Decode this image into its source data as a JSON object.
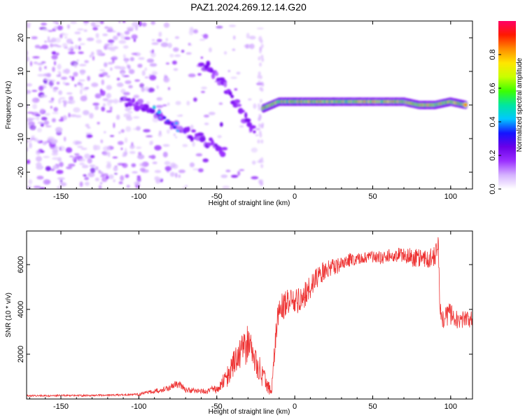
{
  "title": "PAZ1.2024.269.12.14.G20",
  "chart_data": [
    {
      "type": "heatmap",
      "xlabel": "Height of straight line (km)",
      "ylabel": "Frequency (Hz)",
      "xlim": [
        -172,
        114
      ],
      "ylim": [
        -25,
        25
      ],
      "xticks": [
        -150,
        -100,
        -50,
        0,
        50,
        100
      ],
      "yticks": [
        -20,
        -10,
        0,
        10,
        20
      ],
      "xtick_labels": [
        "-150",
        "-100",
        "-50",
        "0",
        "50",
        "100"
      ],
      "ytick_labels": [
        "-20",
        "-10",
        "0",
        "10",
        "20"
      ],
      "colorbar": {
        "label": "Normalized spectral amplitude",
        "range": [
          0,
          1
        ],
        "ticks": [
          0.0,
          0.2,
          0.4,
          0.6,
          0.8
        ],
        "tick_labels": [
          "0.0",
          "0.2",
          "0.4",
          "0.6",
          "0.8"
        ],
        "colormap": [
          "#ffffff",
          "#d6b3ff",
          "#9b30ff",
          "#6a00e8",
          "#1414ff",
          "#00c8ff",
          "#00e6a0",
          "#3cff00",
          "#c8ff00",
          "#ffe600",
          "#ff8c00",
          "#ff1a00",
          "#ff0066"
        ]
      },
      "ridges": [
        {
          "x": [
            -110,
            -100,
            -90,
            -80,
            -70,
            -60,
            -50,
            -45
          ],
          "y": [
            1,
            0,
            -2,
            -5,
            -8,
            -10,
            -12,
            -14
          ]
        },
        {
          "x": [
            -60,
            -50,
            -40,
            -30,
            -25
          ],
          "y": [
            13,
            9,
            2,
            -5,
            -10
          ]
        },
        {
          "x": [
            -20,
            -10,
            0,
            10,
            20,
            30,
            40,
            50,
            60,
            70,
            80,
            90,
            100,
            110
          ],
          "y": [
            -1,
            1,
            1,
            1,
            1,
            1,
            1,
            1,
            1,
            1,
            0,
            0,
            1,
            0
          ]
        }
      ]
    },
    {
      "type": "line",
      "xlabel": "Height of straight line (km)",
      "ylabel": "SNR (10 * v/v)",
      "xlim": [
        -172,
        114
      ],
      "ylim": [
        0,
        7500
      ],
      "xticks": [
        -150,
        -100,
        -50,
        0,
        50,
        100
      ],
      "yticks": [
        2000,
        4000,
        6000
      ],
      "xtick_labels": [
        "-150",
        "-100",
        "-50",
        "0",
        "50",
        "100"
      ],
      "ytick_labels": [
        "2000",
        "4000",
        "6000"
      ],
      "series": [
        {
          "color": "#ee3333",
          "x": [
            -172,
            -160,
            -150,
            -140,
            -130,
            -120,
            -110,
            -100,
            -90,
            -80,
            -75,
            -70,
            -60,
            -55,
            -50,
            -45,
            -40,
            -35,
            -30,
            -25,
            -20,
            -15,
            -12,
            -10,
            -5,
            0,
            5,
            10,
            15,
            20,
            25,
            30,
            35,
            40,
            45,
            50,
            55,
            60,
            65,
            70,
            75,
            80,
            85,
            90,
            92,
            93,
            95,
            100,
            105,
            110,
            114
          ],
          "y": [
            150,
            140,
            160,
            150,
            160,
            170,
            180,
            200,
            350,
            500,
            700,
            400,
            350,
            380,
            450,
            800,
            1400,
            2000,
            2500,
            1700,
            900,
            300,
            3000,
            4000,
            4300,
            4300,
            4500,
            5000,
            5500,
            5800,
            5900,
            6000,
            6200,
            6250,
            6300,
            6350,
            6300,
            6400,
            6400,
            6500,
            6300,
            6300,
            6200,
            6400,
            7000,
            4200,
            3600,
            3800,
            3500,
            3600,
            3500
          ],
          "amp": [
            40,
            40,
            40,
            40,
            40,
            40,
            40,
            60,
            100,
            150,
            200,
            120,
            120,
            150,
            200,
            400,
            600,
            800,
            900,
            700,
            500,
            200,
            600,
            700,
            600,
            600,
            600,
            500,
            500,
            400,
            400,
            300,
            300,
            250,
            250,
            250,
            300,
            300,
            300,
            400,
            400,
            400,
            400,
            500,
            600,
            500,
            500,
            500,
            400,
            400,
            400
          ]
        }
      ]
    }
  ]
}
